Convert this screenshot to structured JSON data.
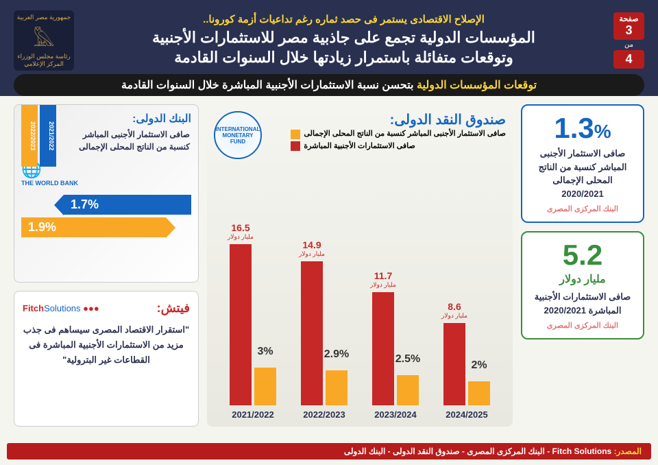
{
  "header": {
    "logo_line1": "جمهورية مصر العربية",
    "logo_line2": "رئاسة مجلس الوزراء",
    "logo_line3": "المركز الإعلامي",
    "line1": "الإصلاح الاقتصادى يستمر فى حصد ثماره رغم تداعيات أزمة كورونا..",
    "line2": "المؤسسات الدولية تجمع على جاذبية مصر للاستثمارات الأجنبية",
    "line3": "وتوقعات متفائلة باستمرار زيادتها خلال السنوات القادمة",
    "page_label": "صفحة",
    "page_num": "3",
    "page_of": "من",
    "page_total": "4"
  },
  "subtitle": {
    "highlight": "توقعات المؤسسات الدولية",
    "rest": " بتحسن نسبة الاستثمارات الأجنبية المباشرة خلال السنوات القادمة"
  },
  "stat1": {
    "value": "1.3",
    "pct": "%",
    "desc": "صافى الاستثمار الأجنبى المباشر كنسبة من الناتج المحلى الإجمالى 2020/2021",
    "src": "البنك المركزى المصرى"
  },
  "stat2": {
    "value": "5.2",
    "unit": "مليار دولار",
    "desc": "صافى الاستثمارات الأجنبية المباشرة 2020/2021",
    "src": "البنك المركزى المصرى"
  },
  "imf": {
    "title": "صندوق النقد الدولى:",
    "logo": "INTERNATIONAL MONETARY FUND",
    "legend1": "صافى الاستثمار الأجنبى المباشر كنسبة من الناتج المحلى الإجمالى",
    "legend2": "صافى الاستثمارات الأجنبية المباشرة",
    "red_unit": "مليار دولار",
    "periods": [
      "2021/2022",
      "2022/2023",
      "2023/2024",
      "2024/2025"
    ],
    "red_values": [
      8.6,
      11.7,
      14.9,
      16.5
    ],
    "red_heights": [
      120,
      165,
      210,
      235
    ],
    "orange_values": [
      "2%",
      "2.5%",
      "2.9%",
      "3%"
    ],
    "orange_heights": [
      35,
      44,
      51,
      55
    ]
  },
  "wb": {
    "title": "البنك الدولى:",
    "desc": "صافى الاستثمار الأجنبى المباشر كنسبة من الناتج المحلى الإجمالى",
    "logo": "THE WORLD BANK",
    "bar1": "2021/2022",
    "bar2": "2022/2023",
    "val1": "1.7%",
    "val2": "1.9%"
  },
  "fitch": {
    "title": "فيتش:",
    "logo1": "Fitch",
    "logo2": "Solutions",
    "quote": "\"استقرار الاقتصاد المصرى سيساهم فى جذب مزيد من الاستثمارات الأجنبية المباشرة فى القطاعات غير البترولية\""
  },
  "footer": {
    "label": "المصدر:",
    "text": " Fitch Solutions - البنك المركزى المصرى - صندوق النقد الدولى - البنك الدولى"
  }
}
